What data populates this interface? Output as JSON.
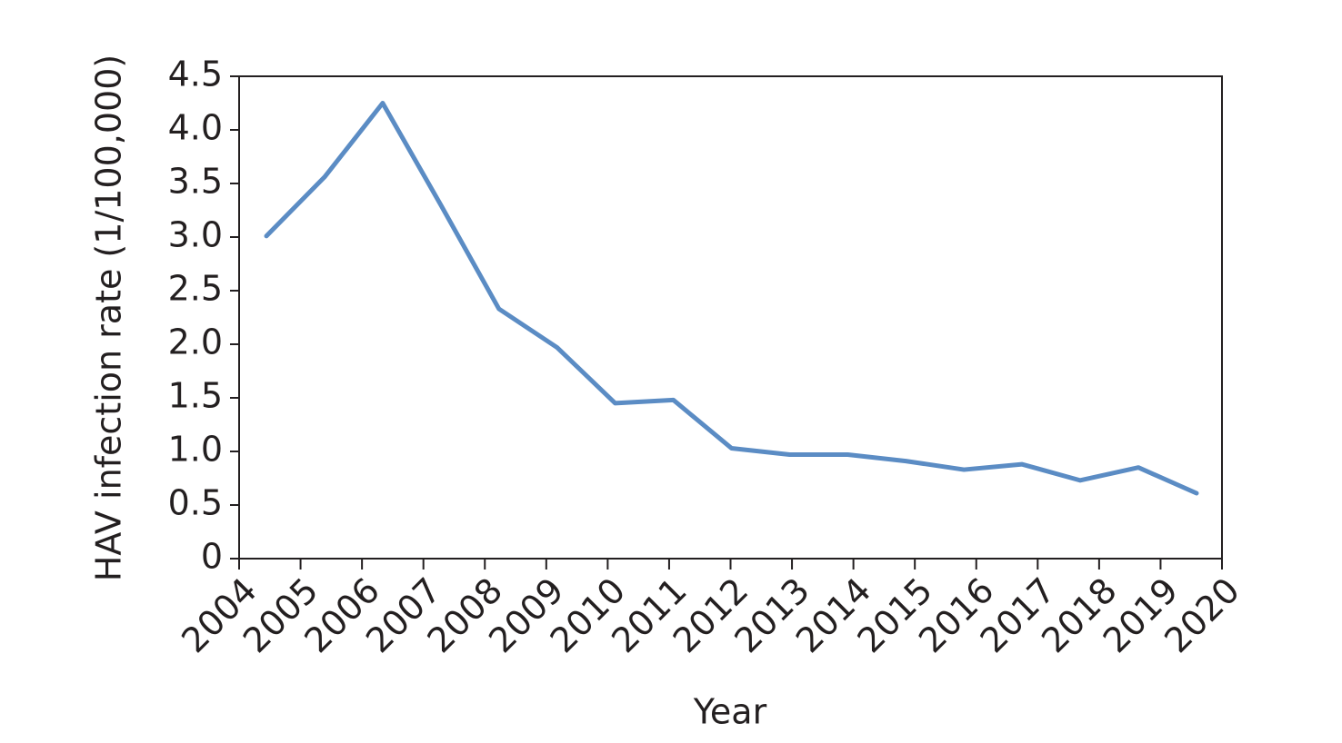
{
  "chart_data": {
    "type": "line",
    "x_label": "Year",
    "y_label": "HAV infection rate (1/100,000)",
    "categories": [
      "2004",
      "2005",
      "2006",
      "2007",
      "2008",
      "2009",
      "2010",
      "2011",
      "2012",
      "2013",
      "2014",
      "2015",
      "2016",
      "2017",
      "2018",
      "2019",
      "2020"
    ],
    "series": [
      {
        "name": "HAV infection rate",
        "color": "#5b8cc4",
        "values": [
          3.01,
          3.56,
          4.25,
          3.3,
          2.33,
          1.97,
          1.45,
          1.48,
          1.03,
          0.97,
          0.97,
          0.91,
          0.83,
          0.88,
          0.73,
          0.85,
          0.61
        ]
      }
    ],
    "ylim": [
      0,
      4.5
    ],
    "yticks": [
      0,
      0.5,
      {
        "value": 1,
        "label": "1.0"
      },
      1.5,
      {
        "value": 2,
        "label": "2.0"
      },
      2.5,
      {
        "value": 3,
        "label": "3.0"
      },
      3.5,
      {
        "value": 4,
        "label": "4.0"
      },
      4.5
    ],
    "grid": false
  }
}
